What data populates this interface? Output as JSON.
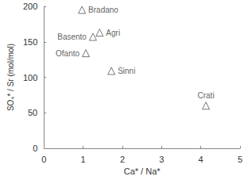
{
  "chart_data": {
    "type": "scatter",
    "x_label": "Ca* / Na*",
    "y_label": "SO₄* / Sr (mol/mol)",
    "x": [
      0.97,
      1.42,
      1.25,
      1.07,
      1.72,
      4.13
    ],
    "values": [
      195,
      163,
      157,
      134,
      109,
      60
    ],
    "point_labels": [
      "Bradano",
      "Agri",
      "Basento",
      "Ofanto",
      "Sinni",
      "Crati"
    ],
    "color": "#555555",
    "marker": "triangle",
    "xlim": [
      0,
      5
    ],
    "xticks": [
      0,
      1,
      2,
      3,
      4,
      5
    ],
    "ylim": [
      0,
      200
    ],
    "yticks": [
      0,
      50,
      100,
      150,
      200
    ],
    "grid": false
  }
}
